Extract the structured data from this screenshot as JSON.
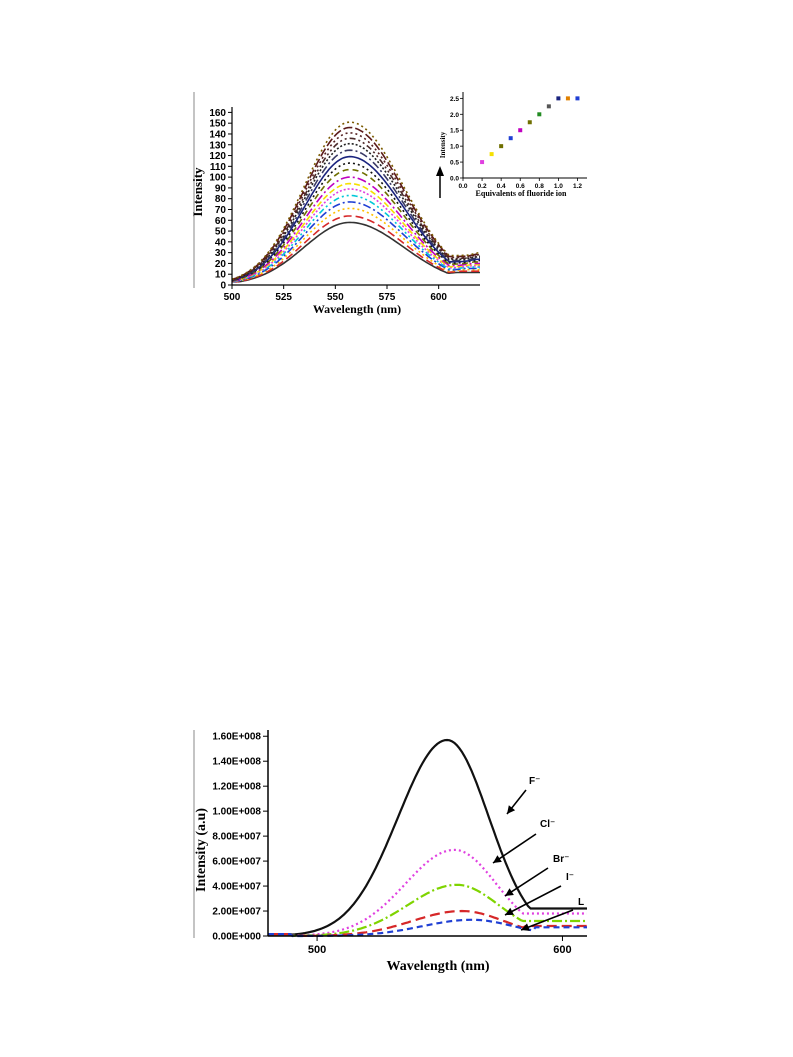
{
  "chart_data": [
    {
      "type": "line",
      "xlabel": "Wavelength (nm)",
      "ylabel": "Intensity",
      "xlim": [
        500,
        620
      ],
      "ylim": [
        0,
        165
      ],
      "xticks": [
        500,
        525,
        550,
        575,
        600
      ],
      "yticks": [
        0,
        10,
        20,
        30,
        40,
        50,
        60,
        70,
        80,
        90,
        100,
        110,
        120,
        130,
        140,
        150,
        160
      ],
      "peak_wavelength": 557,
      "series": [
        {
          "peak": 58,
          "color": "#333333",
          "dash": ""
        },
        {
          "peak": 64,
          "color": "#d62728",
          "dash": "8,4"
        },
        {
          "peak": 71,
          "color": "#ffbf00",
          "dash": "2,3"
        },
        {
          "peak": 77,
          "color": "#1f3fd4",
          "dash": "8,3,2,3"
        },
        {
          "peak": 83,
          "color": "#00c8d8",
          "dash": "6,3,2,3,2,3"
        },
        {
          "peak": 89,
          "color": "#e040e0",
          "dash": "2,2"
        },
        {
          "peak": 94,
          "color": "#f5e000",
          "dash": "6,3"
        },
        {
          "peak": 100,
          "color": "#c000c0",
          "dash": "9,3,2,3"
        },
        {
          "peak": 107,
          "color": "#6f6f00",
          "dash": "6,4"
        },
        {
          "peak": 113,
          "color": "#111111",
          "dash": "2,3"
        },
        {
          "peak": 119,
          "color": "#1a237e",
          "dash": ""
        },
        {
          "peak": 125,
          "color": "#3a3a66",
          "dash": "8,3,2,3"
        },
        {
          "peak": 131,
          "color": "#222222",
          "dash": "2,2"
        },
        {
          "peak": 136,
          "color": "#4b2a2a",
          "dash": "6,3,2,3,2,3"
        },
        {
          "peak": 141,
          "color": "#552222",
          "dash": "2,3"
        },
        {
          "peak": 146,
          "color": "#5a1a1a",
          "dash": "9,3"
        },
        {
          "peak": 151,
          "color": "#7a5a00",
          "dash": "2,3"
        }
      ],
      "inset": {
        "type": "scatter",
        "xlabel": "Equivalents of fluoride ion",
        "ylabel": "Intensity",
        "xlim": [
          0,
          1.3
        ],
        "ylim": [
          0,
          2.7
        ],
        "xticks": [
          "0.0",
          "0.2",
          "0.4",
          "0.6",
          "0.8",
          "1.0",
          "1.2"
        ],
        "yticks": [
          "0.0",
          "0.5",
          "1.0",
          "1.5",
          "2.0",
          "2.5"
        ],
        "points": [
          {
            "x": 0.2,
            "y": 0.5,
            "color": "#e040e0"
          },
          {
            "x": 0.3,
            "y": 0.75,
            "color": "#f5e000"
          },
          {
            "x": 0.4,
            "y": 1.0,
            "color": "#6f6f00"
          },
          {
            "x": 0.5,
            "y": 1.25,
            "color": "#1f3fd4"
          },
          {
            "x": 0.6,
            "y": 1.5,
            "color": "#c000c0"
          },
          {
            "x": 0.7,
            "y": 1.75,
            "color": "#6f6f00"
          },
          {
            "x": 0.8,
            "y": 2.0,
            "color": "#228b22"
          },
          {
            "x": 0.9,
            "y": 2.25,
            "color": "#555555"
          },
          {
            "x": 1.0,
            "y": 2.5,
            "color": "#1a237e"
          },
          {
            "x": 1.1,
            "y": 2.5,
            "color": "#e08000"
          },
          {
            "x": 1.2,
            "y": 2.5,
            "color": "#1f3fd4"
          }
        ]
      }
    },
    {
      "type": "line",
      "xlabel": "Wavelength (nm)",
      "ylabel": "Intensity (a.u)",
      "xlim": [
        480,
        610
      ],
      "ylim": [
        0,
        165000000
      ],
      "xticks": [
        "500",
        "600"
      ],
      "ytick_labels": [
        "0.00E+000",
        "2.00E+007",
        "4.00E+007",
        "6.00E+007",
        "8.00E+007",
        "1.00E+008",
        "1.20E+008",
        "1.40E+008",
        "1.60E+008"
      ],
      "series": [
        {
          "name": "F⁻",
          "peak": 157000000,
          "peak_wavelength": 553,
          "tail": 22000000,
          "color": "#111111",
          "dash": ""
        },
        {
          "name": "Cl⁻",
          "peak": 69000000,
          "peak_wavelength": 556,
          "tail": 18000000,
          "color": "#e040e0",
          "dash": "2,3"
        },
        {
          "name": "Br⁻",
          "peak": 41000000,
          "peak_wavelength": 557,
          "tail": 12000000,
          "color": "#7fd400",
          "dash": "10,3,2,3"
        },
        {
          "name": "I⁻",
          "peak": 20000000,
          "peak_wavelength": 559,
          "tail": 8000000,
          "color": "#d62728",
          "dash": "10,5"
        },
        {
          "name": "L",
          "peak": 13000000,
          "peak_wavelength": 563,
          "tail": 7000000,
          "color": "#1f3fd4",
          "dash": "6,4"
        }
      ]
    }
  ]
}
